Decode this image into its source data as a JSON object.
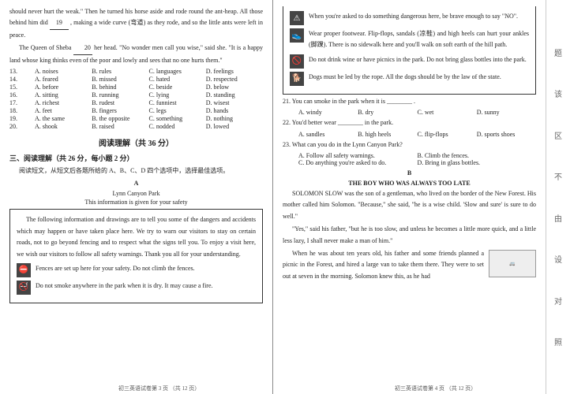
{
  "left": {
    "para1": "should never hurt the weak.\" Then he turned his horse aside and rode round the ant-heap. All those behind him did ",
    "blank19": "19",
    "para1b": " , making a wide curve (弯道) as they rode, and so the little ants were left in peace.",
    "para2a": "The Queen of Sheba ",
    "blank20": "20",
    "para2b": " her head. \"No wonder men call you wise,\" said she. \"It is a happy land whose king thinks even of the poor and lowly and sees that no one hurts them.\"",
    "cloze": [
      {
        "n": "13.",
        "a": "A. noises",
        "b": "B. rules",
        "c": "C. languages",
        "d": "D. feelings"
      },
      {
        "n": "14.",
        "a": "A. feared",
        "b": "B. missed",
        "c": "C. hated",
        "d": "D. respected"
      },
      {
        "n": "15.",
        "a": "A. before",
        "b": "B. behind",
        "c": "C. beside",
        "d": "D. below"
      },
      {
        "n": "16.",
        "a": "A. sitting",
        "b": "B. running",
        "c": "C. lying",
        "d": "D. standing"
      },
      {
        "n": "17.",
        "a": "A. richest",
        "b": "B. rudest",
        "c": "C. funniest",
        "d": "D. wisest"
      },
      {
        "n": "18.",
        "a": "A. feet",
        "b": "B. fingers",
        "c": "C. legs",
        "d": "D. hands"
      },
      {
        "n": "19.",
        "a": "A. the same",
        "b": "B. the opposite",
        "c": "C. something",
        "d": "D. nothing"
      },
      {
        "n": "20.",
        "a": "A. shook",
        "b": "B. raised",
        "c": "C. nodded",
        "d": "D. lowed"
      }
    ],
    "sectionTitle": "阅读理解（共 36 分）",
    "subTitle": "三、阅读理解（共 26 分，每小题 2 分）",
    "instruction": "阅读短文，从短文后各题所给的 A、B、C、D 四个选项中，选择最佳选项。",
    "labelA": "A",
    "titleA": "Lynn Canyon Park",
    "subtitleA": "This information is given for your safety",
    "boxIntro": "The following information and drawings are to tell you some of the dangers and accidents which may happen or have taken place here. We try to warn our visitors to stay on certain roads, not to go beyond fencing and to respect what the signs tell you. To enjoy a visit here, we wish our visitors to follow all safety warnings. Thank you all for your understanding.",
    "rule1": "Fences are set up here for your safety. Do not climb the fences.",
    "rule2": "Do not smoke anywhere in the park when it is dry. It may cause a fire.",
    "footer": "初三英语试卷第 3 页 （共 12 页）"
  },
  "right": {
    "rule3": "When you're asked to do something dangerous here, be brave enough to say \"NO\".",
    "rule4": "Wear proper footwear. Flip-flops, sandals (凉鞋) and high heels can hurt your ankles (脚踝). There is no sidewalk here and you'll walk on soft earth of the hill path.",
    "rule5": "Do not drink wine or have picnics in the park. Do not bring glass bottles into the park.",
    "rule6": "Dogs must be led by the rope. All the dogs should be by the law of the state.",
    "q21": "21. You can smoke in the park when it is ________ .",
    "q21opts": {
      "a": "A. windy",
      "b": "B. dry",
      "c": "C. wet",
      "d": "D. sunny"
    },
    "q22": "22. You'd better wear ________ in the park.",
    "q22opts": {
      "a": "A. sandles",
      "b": "B. high heels",
      "c": "C. flip-flops",
      "d": "D. sports shoes"
    },
    "q23": "23. What can you do in the Lynn Canyon Park?",
    "q23opts": {
      "a": "A. Follow all safety warnings.",
      "b": "B. Climb the fences.",
      "c": "C. Do anything you're asked to do.",
      "d": "D. Bring in glass bottles."
    },
    "labelB": "B",
    "titleB": "THE BOY WHO WAS ALWAYS TOO LATE",
    "pB1": "SOLOMON SLOW was the son of a gentleman, who lived on the border of the New Forest. His mother called him Solomon. \"Because,\" she said, \"he is a wise child. 'Slow and sure' is sure to do well.\"",
    "pB2": "\"Yes,\" said his father, \"but he is too slow, and unless he becomes a little more quick, and a little less lazy, I shall never make a man of him.\"",
    "pB3": "When he was about ten years old, his father and some friends planned a picnic in the Forest, and hired a large van to take them there. They were to set out at seven in the morning. Solomon knew this, as he had",
    "footer": "初三英语试卷第 4 页 （共 12 页）"
  },
  "tabs": [
    "题",
    "该",
    "区",
    "不",
    "由",
    "设",
    "对",
    "照"
  ]
}
